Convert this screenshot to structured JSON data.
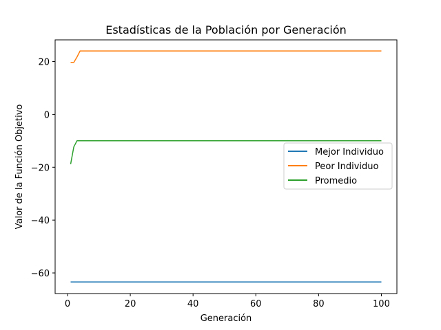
{
  "chart_data": {
    "type": "line",
    "title": "Estadísticas de la Población por Generación",
    "xlabel": "Generación",
    "ylabel": "Valor de la Función Objetivo",
    "xlim": [
      -3.95,
      104.95
    ],
    "ylim": [
      -67.8,
      28.2
    ],
    "xticks": [
      0,
      20,
      40,
      60,
      80,
      100
    ],
    "xtick_labels": [
      "0",
      "20",
      "40",
      "60",
      "80",
      "100"
    ],
    "yticks": [
      20,
      0,
      -20,
      -40,
      -60
    ],
    "ytick_labels": [
      "20",
      "0",
      "−20",
      "−40",
      "−60"
    ],
    "grid": false,
    "legend_position": "center-right",
    "series": [
      {
        "name": "Mejor Individuo",
        "color": "#1f77b4",
        "points": [
          [
            1,
            -63.4
          ],
          [
            100,
            -63.4
          ]
        ]
      },
      {
        "name": "Peor Individuo",
        "color": "#ff7f0e",
        "points": [
          [
            1,
            19.7
          ],
          [
            2,
            19.7
          ],
          [
            3,
            21.7
          ],
          [
            4,
            24.0
          ],
          [
            100,
            24.0
          ]
        ]
      },
      {
        "name": "Promedio",
        "color": "#2ca02c",
        "points": [
          [
            1,
            -18.8
          ],
          [
            2,
            -12.3
          ],
          [
            3,
            -10.0
          ],
          [
            100,
            -10.0
          ]
        ]
      }
    ]
  }
}
